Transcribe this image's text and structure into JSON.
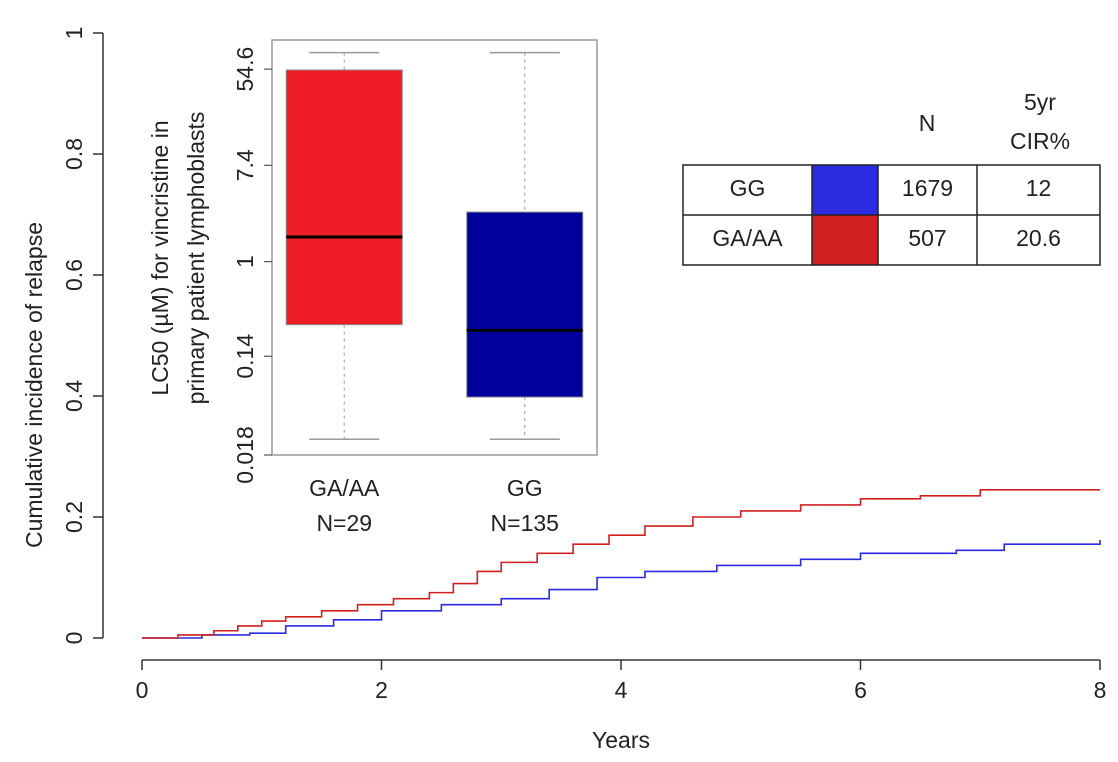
{
  "chart_data": [
    {
      "type": "step",
      "x_label": "Years",
      "y_label": "Cumulative incidence of relapse",
      "xlim": [
        0,
        8
      ],
      "xticks": [
        0,
        2,
        4,
        6,
        8
      ],
      "ylim": [
        0,
        1
      ],
      "yticks": [
        0,
        0.2,
        0.4,
        0.6,
        0.8,
        1
      ],
      "series": [
        {
          "name": "GG",
          "color": "#2a2ae0",
          "n": 1679,
          "cir5yr": 12,
          "x": [
            0,
            0.5,
            0.9,
            1.2,
            1.6,
            2.0,
            2.5,
            3.0,
            3.4,
            3.8,
            4.2,
            4.8,
            5.5,
            6.0,
            6.8,
            7.2,
            8.0
          ],
          "values": [
            0,
            0.005,
            0.008,
            0.02,
            0.03,
            0.045,
            0.055,
            0.065,
            0.08,
            0.1,
            0.11,
            0.12,
            0.13,
            0.14,
            0.145,
            0.155,
            0.162
          ]
        },
        {
          "name": "GA/AA",
          "color": "#d02020",
          "n": 507,
          "cir5yr": 20.6,
          "x": [
            0,
            0.3,
            0.6,
            0.8,
            1.0,
            1.2,
            1.5,
            1.8,
            2.1,
            2.4,
            2.6,
            2.8,
            3.0,
            3.3,
            3.6,
            3.9,
            4.2,
            4.6,
            5.0,
            5.5,
            6.0,
            6.5,
            7.0,
            8.0
          ],
          "values": [
            0,
            0.005,
            0.012,
            0.02,
            0.028,
            0.035,
            0.045,
            0.055,
            0.065,
            0.075,
            0.09,
            0.11,
            0.125,
            0.14,
            0.155,
            0.17,
            0.185,
            0.2,
            0.21,
            0.22,
            0.23,
            0.235,
            0.245,
            0.245
          ]
        }
      ]
    },
    {
      "type": "box",
      "y_label": [
        "LC50 (µM) for vincristine in",
        "primary patient lymphoblasts"
      ],
      "log_y": true,
      "ylim": [
        0.018,
        100
      ],
      "yticks": [
        0.018,
        0.14,
        1,
        7.4,
        54.6
      ],
      "categories": [
        "GA/AA",
        "GG"
      ],
      "n_labels": [
        "N=29",
        "N=135"
      ],
      "colors": [
        "#ee1c24",
        "#00009c"
      ],
      "boxes": [
        {
          "whislo": 0.025,
          "q1": 0.27,
          "med": 1.67,
          "q3": 53.6,
          "whishi": 77
        },
        {
          "whislo": 0.025,
          "q1": 0.06,
          "med": 0.24,
          "q3": 2.8,
          "whishi": 77
        }
      ]
    }
  ],
  "table": {
    "header": {
      "n": "N",
      "cir": [
        "5yr",
        "CIR%"
      ]
    }
  }
}
